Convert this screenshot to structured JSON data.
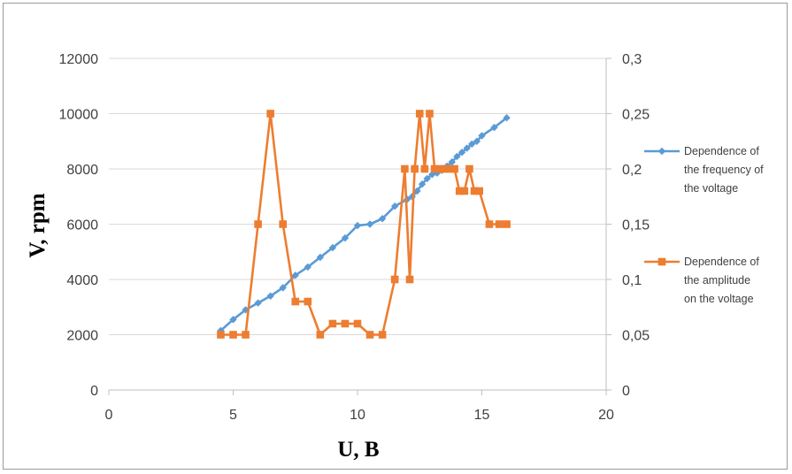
{
  "chart_data": {
    "type": "line",
    "xlabel": "U, B",
    "ylabel": "V, rpm",
    "xlim": [
      0,
      20
    ],
    "ylim_left": [
      0,
      12000
    ],
    "ylim_right": [
      0,
      0.3
    ],
    "x_ticks": [
      "0",
      "5",
      "10",
      "15",
      "20"
    ],
    "y_left_ticks": [
      "0",
      "2000",
      "4000",
      "6000",
      "8000",
      "10000",
      "12000"
    ],
    "y_right_ticks": [
      "0",
      "0,05",
      "0,1",
      "0,15",
      "0,2",
      "0,25",
      "0,3"
    ],
    "grid": "horizontal",
    "legend_position": "right",
    "series": [
      {
        "name": "Dependence of the frequency of the voltage",
        "legend_lines": [
          "Dependence of",
          "the frequency of",
          "the voltage"
        ],
        "axis": "left",
        "color": "#5b9bd5",
        "marker": "diamond",
        "points": [
          [
            4.5,
            2150
          ],
          [
            5.0,
            2550
          ],
          [
            5.5,
            2900
          ],
          [
            6.0,
            3150
          ],
          [
            6.5,
            3400
          ],
          [
            7.0,
            3700
          ],
          [
            7.5,
            4150
          ],
          [
            8.0,
            4450
          ],
          [
            8.5,
            4800
          ],
          [
            9.0,
            5150
          ],
          [
            9.5,
            5500
          ],
          [
            10.0,
            5950
          ],
          [
            10.5,
            6000
          ],
          [
            11.0,
            6200
          ],
          [
            11.5,
            6650
          ],
          [
            12.0,
            6900
          ],
          [
            12.2,
            7000
          ],
          [
            12.4,
            7200
          ],
          [
            12.6,
            7450
          ],
          [
            12.8,
            7650
          ],
          [
            13.0,
            7800
          ],
          [
            13.2,
            7850
          ],
          [
            13.4,
            7950
          ],
          [
            13.6,
            8100
          ],
          [
            13.8,
            8250
          ],
          [
            14.0,
            8450
          ],
          [
            14.2,
            8600
          ],
          [
            14.4,
            8750
          ],
          [
            14.6,
            8900
          ],
          [
            14.8,
            9000
          ],
          [
            15.0,
            9200
          ],
          [
            15.5,
            9500
          ],
          [
            16.0,
            9850
          ]
        ]
      },
      {
        "name": "Dependence of the amplitude on the voltage",
        "legend_lines": [
          "Dependence of",
          "the amplitude",
          "on the voltage"
        ],
        "axis": "right",
        "color": "#ed7d31",
        "marker": "square",
        "points": [
          [
            4.5,
            0.05
          ],
          [
            5.0,
            0.05
          ],
          [
            5.5,
            0.05
          ],
          [
            6.0,
            0.15
          ],
          [
            6.5,
            0.25
          ],
          [
            7.0,
            0.15
          ],
          [
            7.5,
            0.08
          ],
          [
            8.0,
            0.08
          ],
          [
            8.5,
            0.05
          ],
          [
            9.0,
            0.06
          ],
          [
            9.5,
            0.06
          ],
          [
            10.0,
            0.06
          ],
          [
            10.5,
            0.05
          ],
          [
            11.0,
            0.05
          ],
          [
            11.5,
            0.1
          ],
          [
            11.9,
            0.2
          ],
          [
            12.1,
            0.1
          ],
          [
            12.3,
            0.2
          ],
          [
            12.5,
            0.25
          ],
          [
            12.7,
            0.2
          ],
          [
            12.9,
            0.25
          ],
          [
            13.1,
            0.2
          ],
          [
            13.3,
            0.2
          ],
          [
            13.5,
            0.2
          ],
          [
            13.7,
            0.2
          ],
          [
            13.9,
            0.2
          ],
          [
            14.1,
            0.18
          ],
          [
            14.3,
            0.18
          ],
          [
            14.5,
            0.2
          ],
          [
            14.7,
            0.18
          ],
          [
            14.9,
            0.18
          ],
          [
            15.3,
            0.15
          ],
          [
            15.7,
            0.15
          ],
          [
            16.0,
            0.15
          ]
        ]
      }
    ]
  }
}
